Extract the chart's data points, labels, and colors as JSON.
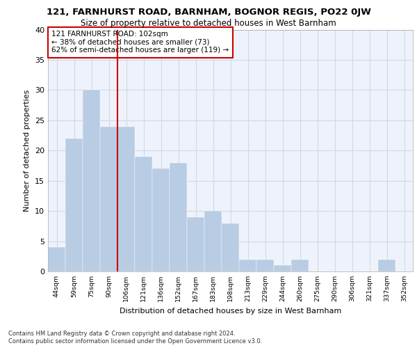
{
  "title1": "121, FARNHURST ROAD, BARNHAM, BOGNOR REGIS, PO22 0JW",
  "title2": "Size of property relative to detached houses in West Barnham",
  "xlabel": "Distribution of detached houses by size in West Barnham",
  "ylabel": "Number of detached properties",
  "bar_labels": [
    "44sqm",
    "59sqm",
    "75sqm",
    "90sqm",
    "106sqm",
    "121sqm",
    "136sqm",
    "152sqm",
    "167sqm",
    "183sqm",
    "198sqm",
    "213sqm",
    "229sqm",
    "244sqm",
    "260sqm",
    "275sqm",
    "290sqm",
    "306sqm",
    "321sqm",
    "337sqm",
    "352sqm"
  ],
  "bar_values": [
    4,
    22,
    30,
    24,
    24,
    19,
    17,
    18,
    9,
    10,
    8,
    2,
    2,
    1,
    2,
    0,
    0,
    0,
    0,
    2,
    0
  ],
  "bar_color": "#b8cce4",
  "bar_edgecolor": "#b8cce4",
  "vline_x": 3.5,
  "vline_color": "#cc0000",
  "annotation_text": "121 FARNHURST ROAD: 102sqm\n← 38% of detached houses are smaller (73)\n62% of semi-detached houses are larger (119) →",
  "annotation_box_edgecolor": "#cc0000",
  "ylim": [
    0,
    40
  ],
  "yticks": [
    0,
    5,
    10,
    15,
    20,
    25,
    30,
    35,
    40
  ],
  "grid_color": "#d0d8e8",
  "bg_color": "#eef2fa",
  "footnote1": "Contains HM Land Registry data © Crown copyright and database right 2024.",
  "footnote2": "Contains public sector information licensed under the Open Government Licence v3.0."
}
